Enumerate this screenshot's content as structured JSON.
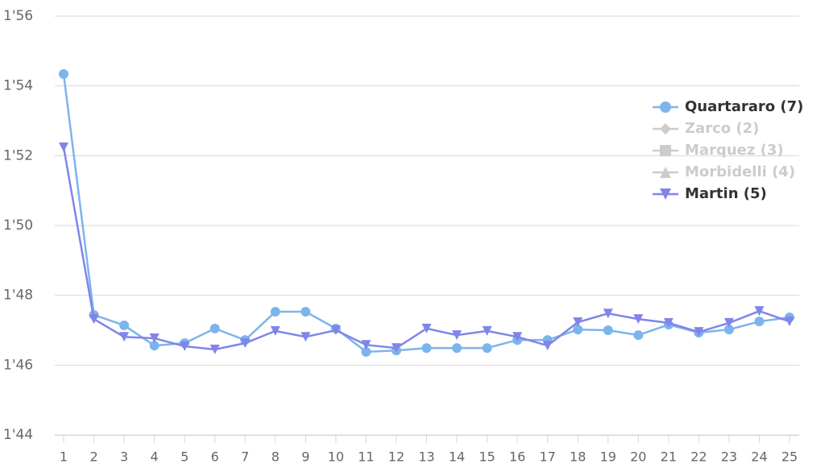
{
  "chart_data": {
    "type": "line",
    "x": [
      1,
      2,
      3,
      4,
      5,
      6,
      7,
      8,
      9,
      10,
      11,
      12,
      13,
      14,
      15,
      16,
      17,
      18,
      19,
      20,
      21,
      22,
      23,
      24,
      25
    ],
    "xlim": [
      1,
      25
    ],
    "ylim": [
      104,
      116
    ],
    "yticks": [
      {
        "value": 104,
        "label": "1'44"
      },
      {
        "value": 106,
        "label": "1'46"
      },
      {
        "value": 108,
        "label": "1'48"
      },
      {
        "value": 110,
        "label": "1'50"
      },
      {
        "value": 112,
        "label": "1'52"
      },
      {
        "value": 114,
        "label": "1'54"
      },
      {
        "value": 116,
        "label": "1'56"
      }
    ],
    "grid": true,
    "legend": "right",
    "series": [
      {
        "name": "Quartararo (7)",
        "color": "#7cb5ec",
        "marker": "circle",
        "visible": true,
        "values": [
          114.34,
          107.44,
          107.14,
          106.56,
          106.63,
          107.05,
          106.72,
          107.53,
          107.53,
          107.05,
          106.38,
          106.42,
          106.49,
          106.49,
          106.49,
          106.72,
          106.72,
          107.02,
          107.0,
          106.86,
          107.16,
          106.93,
          107.02,
          107.25,
          107.37
        ]
      },
      {
        "name": "Zarco (2)",
        "color": "#cccccc",
        "marker": "diamond",
        "visible": false
      },
      {
        "name": "Marquez (3)",
        "color": "#cccccc",
        "marker": "square",
        "visible": false
      },
      {
        "name": "Morbidelli (4)",
        "color": "#cccccc",
        "marker": "triangle",
        "visible": false
      },
      {
        "name": "Martin (5)",
        "color": "#8085e9",
        "marker": "triangle-down",
        "visible": true,
        "values": [
          112.24,
          107.32,
          106.81,
          106.77,
          106.54,
          106.45,
          106.63,
          106.98,
          106.81,
          107.0,
          106.58,
          106.49,
          107.05,
          106.86,
          106.98,
          106.81,
          106.56,
          107.23,
          107.48,
          107.32,
          107.21,
          106.95,
          107.21,
          107.55,
          107.25
        ]
      }
    ]
  }
}
